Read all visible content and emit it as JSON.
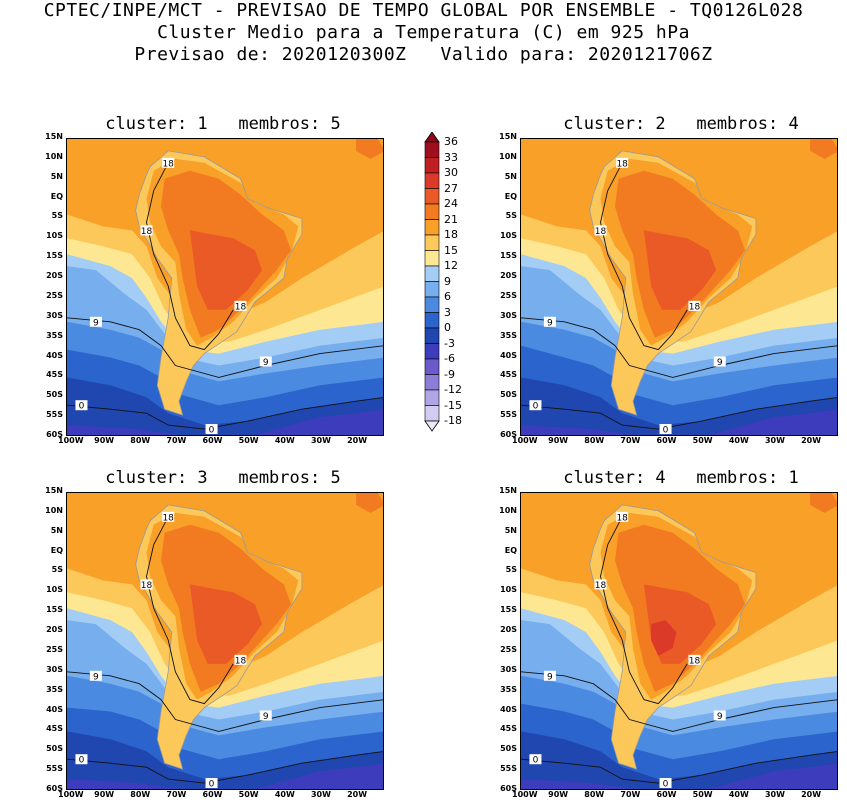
{
  "header": {
    "line1": "CPTEC/INPE/MCT - PREVISAO DE TEMPO GLOBAL POR ENSEMBLE - TQ0126L028",
    "line2": "Cluster Medio para a Temperatura (C) em 925 hPa",
    "line3": "Previsao de: 2020120300Z   Valido para: 2020121706Z"
  },
  "panels": [
    {
      "title": "cluster: 1   membros: 5"
    },
    {
      "title": "cluster: 2   membros: 4"
    },
    {
      "title": "cluster: 3   membros: 5"
    },
    {
      "title": "cluster: 4   membros: 1"
    }
  ],
  "axes": {
    "lat_ticks": [
      "15N",
      "10N",
      "5N",
      "EQ",
      "5S",
      "10S",
      "15S",
      "20S",
      "25S",
      "30S",
      "35S",
      "40S",
      "45S",
      "50S",
      "55S",
      "60S"
    ],
    "lon_ticks": [
      "100W",
      "90W",
      "80W",
      "70W",
      "60W",
      "50W",
      "40W",
      "30W",
      "20W"
    ]
  },
  "colorbar": {
    "labels": [
      "36",
      "33",
      "30",
      "27",
      "24",
      "21",
      "18",
      "15",
      "12",
      "9",
      "6",
      "3",
      "0",
      "-3",
      "-6",
      "-9",
      "-12",
      "-15",
      "-18"
    ],
    "colors": [
      "#a00f20",
      "#c02024",
      "#dc3a28",
      "#ea5a26",
      "#f27a20",
      "#f8a028",
      "#fcc85a",
      "#fde792",
      "#a4cdf6",
      "#76aeee",
      "#4a8ae0",
      "#2a64cc",
      "#2046b0",
      "#3c3cbc",
      "#6a5acc",
      "#8c7ed8",
      "#b0a6e4",
      "#d4ccf0"
    ]
  },
  "contour_labels": [
    "18",
    "9",
    "0"
  ]
}
